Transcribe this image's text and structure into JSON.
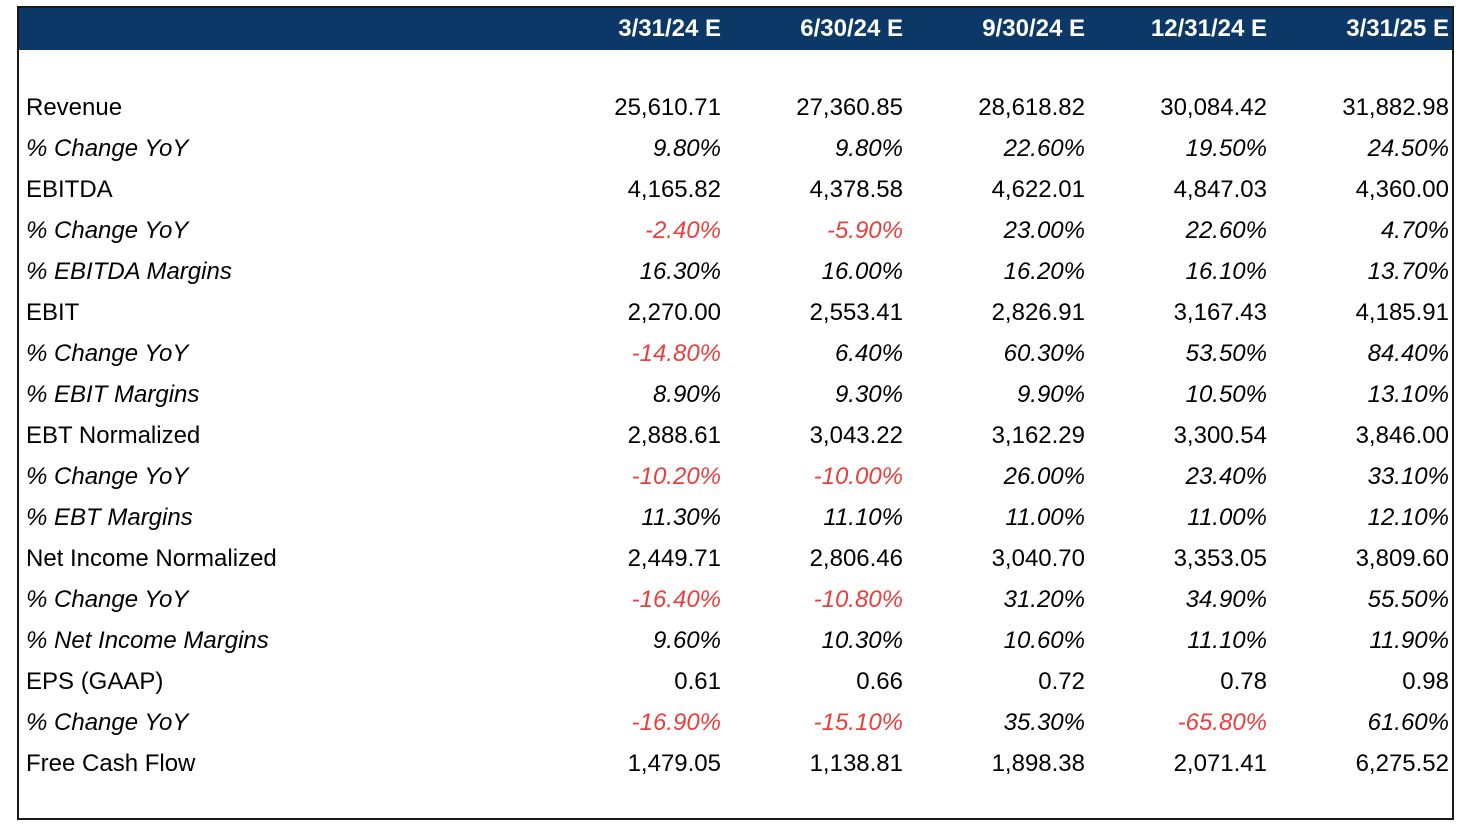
{
  "table": {
    "headers": [
      "3/31/24 E",
      "6/30/24 E",
      "9/30/24 E",
      "12/31/24 E",
      "3/31/25 E"
    ],
    "rows": [
      {
        "label": "Revenue",
        "italic": false,
        "values": [
          "25,610.71",
          "27,360.85",
          "28,618.82",
          "30,084.42",
          "31,882.98"
        ]
      },
      {
        "label": "% Change YoY",
        "italic": true,
        "values": [
          "9.80%",
          "9.80%",
          "22.60%",
          "19.50%",
          "24.50%"
        ]
      },
      {
        "label": "EBITDA",
        "italic": false,
        "values": [
          "4,165.82",
          "4,378.58",
          "4,622.01",
          "4,847.03",
          "4,360.00"
        ]
      },
      {
        "label": "% Change YoY",
        "italic": true,
        "values": [
          "-2.40%",
          "-5.90%",
          "23.00%",
          "22.60%",
          "4.70%"
        ]
      },
      {
        "label": "% EBITDA Margins",
        "italic": true,
        "values": [
          "16.30%",
          "16.00%",
          "16.20%",
          "16.10%",
          "13.70%"
        ]
      },
      {
        "label": "EBIT",
        "italic": false,
        "values": [
          "2,270.00",
          "2,553.41",
          "2,826.91",
          "3,167.43",
          "4,185.91"
        ]
      },
      {
        "label": "% Change YoY",
        "italic": true,
        "values": [
          "-14.80%",
          "6.40%",
          "60.30%",
          "53.50%",
          "84.40%"
        ]
      },
      {
        "label": "% EBIT Margins",
        "italic": true,
        "values": [
          "8.90%",
          "9.30%",
          "9.90%",
          "10.50%",
          "13.10%"
        ]
      },
      {
        "label": "EBT Normalized",
        "italic": false,
        "values": [
          "2,888.61",
          "3,043.22",
          "3,162.29",
          "3,300.54",
          "3,846.00"
        ]
      },
      {
        "label": "% Change YoY",
        "italic": true,
        "values": [
          "-10.20%",
          "-10.00%",
          "26.00%",
          "23.40%",
          "33.10%"
        ]
      },
      {
        "label": "% EBT Margins",
        "italic": true,
        "values": [
          "11.30%",
          "11.10%",
          "11.00%",
          "11.00%",
          "12.10%"
        ]
      },
      {
        "label": "Net Income Normalized",
        "italic": false,
        "values": [
          "2,449.71",
          "2,806.46",
          "3,040.70",
          "3,353.05",
          "3,809.60"
        ]
      },
      {
        "label": "% Change YoY",
        "italic": true,
        "values": [
          "-16.40%",
          "-10.80%",
          "31.20%",
          "34.90%",
          "55.50%"
        ]
      },
      {
        "label": "% Net Income Margins",
        "italic": true,
        "values": [
          "9.60%",
          "10.30%",
          "10.60%",
          "11.10%",
          "11.90%"
        ]
      },
      {
        "label": "EPS (GAAP)",
        "italic": false,
        "values": [
          "0.61",
          "0.66",
          "0.72",
          "0.78",
          "0.98"
        ]
      },
      {
        "label": "% Change YoY",
        "italic": true,
        "values": [
          "-16.90%",
          "-15.10%",
          "35.30%",
          "-65.80%",
          "61.60%"
        ]
      },
      {
        "label": "Free Cash Flow",
        "italic": false,
        "values": [
          "1,479.05",
          "1,138.81",
          "1,898.38",
          "2,071.41",
          "6,275.52"
        ]
      }
    ]
  },
  "colors": {
    "header_bg": "#0b3866",
    "header_text": "#ffffff",
    "negative": "#e8403d",
    "text": "#000000"
  }
}
